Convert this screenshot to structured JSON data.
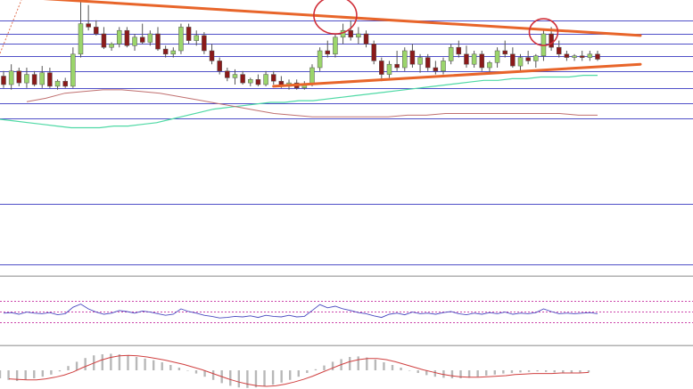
{
  "chart_data": {
    "type": "candlestick",
    "panes": [
      "price",
      "rsi",
      "macd"
    ],
    "grid": true,
    "colors": {
      "bull_body": "#9bd56b",
      "bear_body": "#8b1a1a",
      "grid": "#5050c8",
      "trendline": "#e8652a",
      "highlight_circle": "#d0303a",
      "ma_fast": "#4fd9a5",
      "ma_slow": "#c07070",
      "rsi": "#4a4ac0",
      "macd_signal": "#d04040",
      "macd_histogram": "#b8b8b8"
    },
    "price_scale": {
      "min": 0,
      "max": 100
    },
    "price_levels": [
      88,
      80,
      74,
      67,
      58,
      48,
      39,
      30
    ],
    "candles": [
      [
        55,
        58,
        48,
        50
      ],
      [
        50,
        62,
        47,
        58
      ],
      [
        58,
        60,
        49,
        51
      ],
      [
        51,
        60,
        48,
        56
      ],
      [
        56,
        58,
        49,
        50
      ],
      [
        50,
        61,
        48,
        57
      ],
      [
        57,
        60,
        48,
        49
      ],
      [
        49,
        53,
        47,
        52
      ],
      [
        52,
        54,
        48,
        49
      ],
      [
        49,
        72,
        48,
        68
      ],
      [
        68,
        100,
        66,
        86
      ],
      [
        86,
        97,
        82,
        84
      ],
      [
        84,
        88,
        79,
        80
      ],
      [
        80,
        84,
        71,
        72
      ],
      [
        72,
        75,
        70,
        74
      ],
      [
        74,
        84,
        72,
        82
      ],
      [
        82,
        84,
        72,
        73
      ],
      [
        73,
        80,
        70,
        78
      ],
      [
        78,
        86,
        74,
        75
      ],
      [
        75,
        82,
        73,
        80
      ],
      [
        80,
        84,
        70,
        71
      ],
      [
        71,
        73,
        66,
        68
      ],
      [
        68,
        72,
        66,
        70
      ],
      [
        70,
        86,
        68,
        84
      ],
      [
        84,
        86,
        74,
        76
      ],
      [
        76,
        82,
        73,
        79
      ],
      [
        79,
        81,
        68,
        70
      ],
      [
        70,
        74,
        62,
        64
      ],
      [
        64,
        66,
        56,
        58
      ],
      [
        58,
        60,
        52,
        54
      ],
      [
        54,
        59,
        50,
        56
      ],
      [
        56,
        58,
        50,
        51
      ],
      [
        51,
        54,
        49,
        53
      ],
      [
        53,
        56,
        49,
        50
      ],
      [
        50,
        58,
        49,
        56
      ],
      [
        56,
        58,
        50,
        52
      ],
      [
        52,
        55,
        48,
        49
      ],
      [
        49,
        53,
        47,
        51
      ],
      [
        51,
        53,
        47,
        48
      ],
      [
        48,
        52,
        47,
        50
      ],
      [
        50,
        62,
        49,
        60
      ],
      [
        60,
        72,
        58,
        70
      ],
      [
        70,
        76,
        66,
        68
      ],
      [
        68,
        80,
        66,
        78
      ],
      [
        78,
        86,
        74,
        82
      ],
      [
        82,
        88,
        76,
        78
      ],
      [
        78,
        84,
        74,
        80
      ],
      [
        80,
        82,
        72,
        74
      ],
      [
        74,
        76,
        62,
        64
      ],
      [
        64,
        66,
        52,
        56
      ],
      [
        56,
        64,
        54,
        62
      ],
      [
        62,
        70,
        58,
        60
      ],
      [
        60,
        72,
        58,
        70
      ],
      [
        70,
        74,
        60,
        62
      ],
      [
        62,
        68,
        57,
        66
      ],
      [
        66,
        68,
        58,
        60
      ],
      [
        60,
        64,
        56,
        58
      ],
      [
        58,
        66,
        56,
        64
      ],
      [
        64,
        74,
        62,
        72
      ],
      [
        72,
        76,
        66,
        68
      ],
      [
        68,
        73,
        60,
        62
      ],
      [
        62,
        70,
        60,
        68
      ],
      [
        68,
        70,
        58,
        60
      ],
      [
        60,
        64,
        56,
        63
      ],
      [
        63,
        72,
        60,
        70
      ],
      [
        70,
        76,
        66,
        68
      ],
      [
        68,
        72,
        60,
        61
      ],
      [
        61,
        68,
        58,
        66
      ],
      [
        66,
        70,
        62,
        64
      ],
      [
        64,
        68,
        60,
        67
      ],
      [
        67,
        82,
        64,
        80
      ],
      [
        80,
        84,
        70,
        72
      ],
      [
        72,
        76,
        66,
        68
      ],
      [
        68,
        70,
        64,
        66
      ],
      [
        66,
        68,
        64,
        67
      ],
      [
        67,
        70,
        64,
        66
      ],
      [
        66,
        70,
        64,
        68
      ],
      [
        68,
        70,
        64,
        65
      ]
    ],
    "trendlines": [
      {
        "from": [
          0,
          101
        ],
        "to": [
          77,
          79
        ]
      },
      {
        "from": [
          35,
          49
        ],
        "to": [
          77,
          62
        ]
      }
    ],
    "highlight_circles": [
      {
        "candle": 43,
        "price": 91
      },
      {
        "candle": 70,
        "price": 81
      }
    ],
    "ma_fast": [
      40,
      39,
      38,
      37,
      36,
      35,
      35,
      35,
      36,
      36,
      37,
      38,
      40,
      42,
      44,
      46,
      47,
      48,
      49,
      50,
      50,
      51,
      51,
      52,
      53,
      54,
      55,
      56,
      57,
      58,
      59,
      60,
      61,
      62,
      63,
      63,
      64,
      64,
      65,
      65,
      65,
      66,
      66
    ],
    "ma_slow": [
      62,
      64,
      67,
      68,
      69,
      69,
      68,
      67,
      65,
      63,
      61,
      59,
      57,
      55,
      54,
      53,
      53,
      53,
      53,
      53,
      54,
      54,
      55,
      55,
      55,
      55,
      55,
      55,
      55,
      54,
      54
    ],
    "rsi_levels": [
      70,
      50,
      30
    ],
    "rsi": [
      47,
      48,
      45,
      49,
      47,
      46,
      48,
      44,
      46,
      58,
      64,
      55,
      49,
      45,
      47,
      52,
      50,
      47,
      51,
      49,
      46,
      43,
      45,
      55,
      50,
      47,
      43,
      41,
      38,
      39,
      41,
      40,
      42,
      39,
      43,
      41,
      40,
      43,
      40,
      41,
      52,
      63,
      57,
      60,
      55,
      52,
      48,
      46,
      42,
      39,
      45,
      47,
      44,
      49,
      46,
      47,
      45,
      48,
      50,
      46,
      44,
      47,
      45,
      48,
      46,
      49,
      45,
      47,
      46,
      48,
      55,
      50,
      46,
      47,
      46,
      47,
      48,
      46
    ],
    "macd": [
      -1.5,
      -1.8,
      -2.0,
      -1.7,
      -1.5,
      -1.2,
      -0.8,
      -0.2,
      0.8,
      1.6,
      2.3,
      2.8,
      3.0,
      3.1,
      3.0,
      2.8,
      2.5,
      2.2,
      1.9,
      1.5,
      1.0,
      0.5,
      0.0,
      -0.6,
      -1.2,
      -1.8,
      -2.4,
      -2.9,
      -3.2,
      -3.3,
      -3.2,
      -3.0,
      -2.7,
      -2.3,
      -1.8,
      -1.2,
      -0.5,
      0.2,
      0.9,
      1.6,
      2.1,
      2.5,
      2.6,
      2.4,
      2.0,
      1.5,
      1.0,
      0.5,
      0.0,
      -0.5,
      -0.9,
      -1.2,
      -1.4,
      -1.5,
      -1.5,
      -1.4,
      -1.2,
      -1.0,
      -0.8,
      -0.6,
      -0.5,
      -0.4,
      -0.3,
      -0.2,
      -0.3,
      -0.4,
      -0.5,
      -0.5,
      -0.4,
      -0.4
    ],
    "macd_signal": [
      -1.6,
      -1.7,
      -1.8,
      -1.8,
      -1.6,
      -1.3,
      -0.9,
      -0.3,
      0.5,
      1.2,
      1.9,
      2.4,
      2.7,
      2.8,
      2.7,
      2.5,
      2.2,
      1.9,
      1.5,
      1.1,
      0.6,
      0.1,
      -0.5,
      -1.1,
      -1.7,
      -2.2,
      -2.6,
      -2.9,
      -3.0,
      -2.9,
      -2.6,
      -2.2,
      -1.7,
      -1.1,
      -0.4,
      0.3,
      1.0,
      1.6,
      2.0,
      2.2,
      2.2,
      2.0,
      1.6,
      1.1,
      0.6,
      0.1,
      -0.3,
      -0.7,
      -1.0,
      -1.2,
      -1.3,
      -1.3,
      -1.2,
      -1.1,
      -1.0,
      -0.8,
      -0.7,
      -0.6,
      -0.6,
      -0.6,
      -0.5,
      -0.5,
      -0.5,
      -0.4
    ]
  }
}
